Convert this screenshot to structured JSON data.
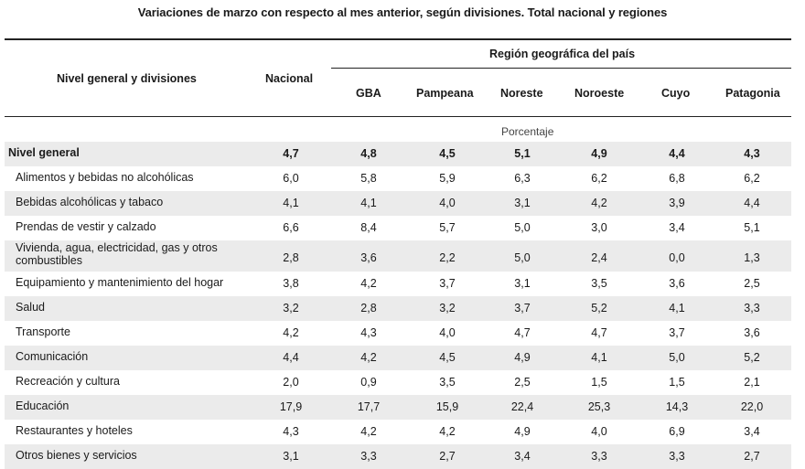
{
  "title": "Variaciones de marzo con respecto al mes anterior, según divisiones. Total nacional y regiones",
  "header": {
    "rowhead": "Nivel general y divisiones",
    "nacional": "Nacional",
    "region_group": "Región geográfica del país",
    "regions": [
      "GBA",
      "Pampeana",
      "Noreste",
      "Noroeste",
      "Cuyo",
      "Patagonia"
    ]
  },
  "unit": "Porcentaje",
  "rows": [
    {
      "label": "Nivel general",
      "values": [
        "4,7",
        "4,8",
        "4,5",
        "5,1",
        "4,9",
        "4,4",
        "4,3"
      ]
    },
    {
      "label": "Alimentos y bebidas no alcohólicas",
      "values": [
        "6,0",
        "5,8",
        "5,9",
        "6,3",
        "6,2",
        "6,8",
        "6,2"
      ]
    },
    {
      "label": "Bebidas alcohólicas y tabaco",
      "values": [
        "4,1",
        "4,1",
        "4,0",
        "3,1",
        "4,2",
        "3,9",
        "4,4"
      ]
    },
    {
      "label": "Prendas de vestir y calzado",
      "values": [
        "6,6",
        "8,4",
        "5,7",
        "5,0",
        "3,0",
        "3,4",
        "5,1"
      ]
    },
    {
      "label": "Vivienda, agua, electricidad, gas y otros",
      "label2": "combustibles",
      "values": [
        "2,8",
        "3,6",
        "2,2",
        "5,0",
        "2,4",
        "0,0",
        "1,3"
      ]
    },
    {
      "label": "Equipamiento y mantenimiento del hogar",
      "values": [
        "3,8",
        "4,2",
        "3,7",
        "3,1",
        "3,5",
        "3,6",
        "2,5"
      ]
    },
    {
      "label": "Salud",
      "values": [
        "3,2",
        "2,8",
        "3,2",
        "3,7",
        "5,2",
        "4,1",
        "3,3"
      ]
    },
    {
      "label": "Transporte",
      "values": [
        "4,2",
        "4,3",
        "4,0",
        "4,7",
        "4,7",
        "3,7",
        "3,6"
      ]
    },
    {
      "label": "Comunicación",
      "values": [
        "4,4",
        "4,2",
        "4,5",
        "4,9",
        "4,1",
        "5,0",
        "5,2"
      ]
    },
    {
      "label": "Recreación y cultura",
      "values": [
        "2,0",
        "0,9",
        "3,5",
        "2,5",
        "1,5",
        "1,5",
        "2,1"
      ]
    },
    {
      "label": "Educación",
      "values": [
        "17,9",
        "17,7",
        "15,9",
        "22,4",
        "25,3",
        "14,3",
        "22,0"
      ]
    },
    {
      "label": "Restaurantes y hoteles",
      "values": [
        "4,3",
        "4,2",
        "4,2",
        "4,9",
        "4,0",
        "6,9",
        "3,4"
      ]
    },
    {
      "label": "Otros bienes y servicios",
      "values": [
        "3,1",
        "3,3",
        "2,7",
        "3,4",
        "3,3",
        "3,3",
        "2,7"
      ]
    }
  ]
}
